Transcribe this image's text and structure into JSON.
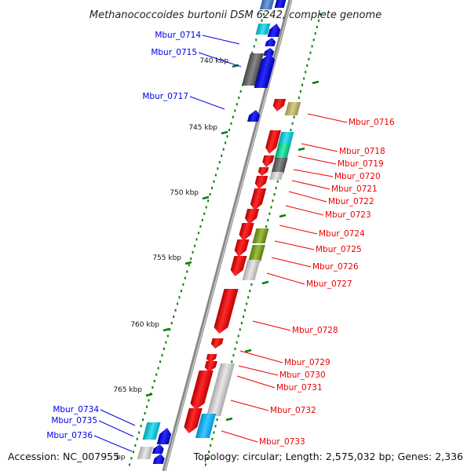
{
  "title": "Methanococcoides burtonii DSM 6242, complete genome",
  "footer": {
    "accession": "Accession: NC_007955",
    "stats": "Topology: circular; Length: 2,575,032 bp; Genes: 2,336"
  },
  "ticks": [
    "740 kbp",
    "745 kbp",
    "750 kbp",
    "755 kbp",
    "760 kbp",
    "765 kbp"
  ],
  "partial_tick": "bp",
  "colors": {
    "forward": "#0000ee",
    "reverse": "#ee0000",
    "backbone": "#888888",
    "tick": "#008000"
  },
  "genes_left": [
    "Mbur_0714",
    "Mbur_0715",
    "Mbur_0717",
    "Mbur_0734",
    "Mbur_0735",
    "Mbur_0736"
  ],
  "genes_right": [
    "Mbur_0716",
    "Mbur_0718",
    "Mbur_0719",
    "Mbur_0720",
    "Mbur_0721",
    "Mbur_0722",
    "Mbur_0723",
    "Mbur_0724",
    "Mbur_0725",
    "Mbur_0726",
    "Mbur_0727",
    "Mbur_0728",
    "Mbur_0729",
    "Mbur_0730",
    "Mbur_0731",
    "Mbur_0732",
    "Mbur_0733"
  ]
}
